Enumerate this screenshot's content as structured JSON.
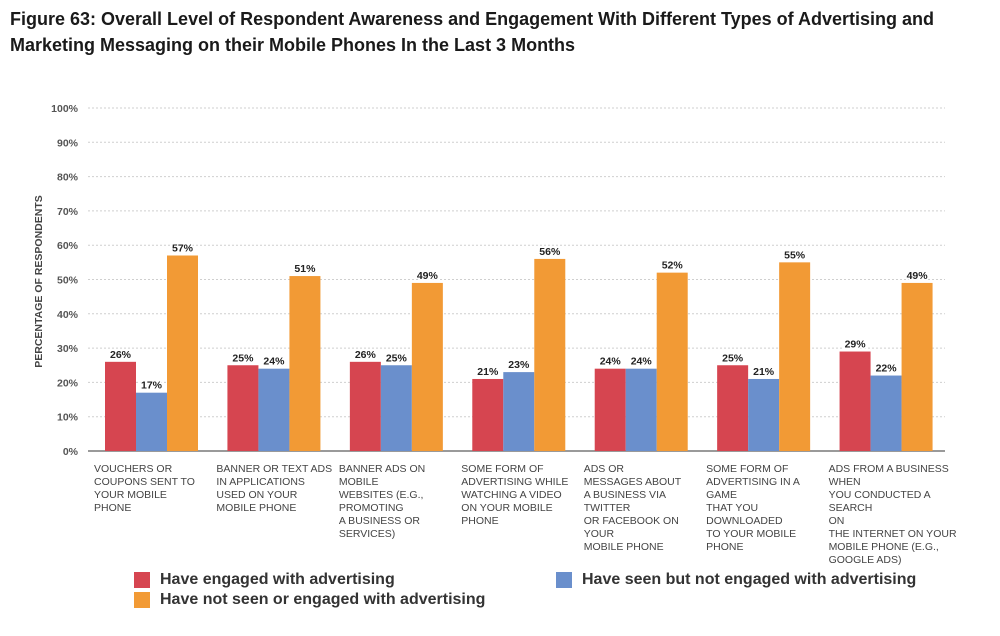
{
  "title_lines": [
    "Figure 63: Overall Level of Respondent Awareness and Engagement With Different Types of Advertising and",
    "Marketing Messaging on their Mobile Phones In the Last 3 Months"
  ],
  "chart_data": {
    "type": "bar",
    "ylabel": "PERCENTAGE OF RESPONDENTS",
    "ylim": [
      0,
      100
    ],
    "yticks": [
      "0%",
      "10%",
      "20%",
      "30%",
      "40%",
      "50%",
      "60%",
      "70%",
      "80%",
      "90%",
      "100%"
    ],
    "grid": true,
    "legend_position": "bottom",
    "categories": [
      "VOUCHERS OR\nCOUPONS SENT TO\nYOUR MOBILE\nPHONE",
      "BANNER OR TEXT ADS\nIN APPLICATIONS\nUSED ON YOUR\nMOBILE PHONE",
      "BANNER ADS ON\nMOBILE\nWEBSITES (E.G.,\nPROMOTING\nA BUSINESS OR\nSERVICES)",
      "SOME FORM OF\nADVERTISING WHILE\nWATCHING A VIDEO\nON YOUR MOBILE\nPHONE",
      "ADS OR\nMESSAGES ABOUT\nA BUSINESS VIA\nTWITTER\nOR FACEBOOK ON\nYOUR\nMOBILE PHONE",
      "SOME FORM OF\nADVERTISING IN A\nGAME\nTHAT YOU\nDOWNLOADED\nTO YOUR MOBILE\nPHONE",
      "ADS FROM A BUSINESS\nWHEN\nYOU CONDUCTED A SEARCH\nON\nTHE INTERNET ON YOUR\nMOBILE PHONE (E.G.,\nGOOGLE ADS)"
    ],
    "series": [
      {
        "name": "Have engaged with advertising",
        "color": "#d64550",
        "values": [
          26,
          25,
          26,
          21,
          24,
          25,
          29
        ]
      },
      {
        "name": "Have seen but not engaged with advertising",
        "color": "#6a8fcc",
        "values": [
          17,
          24,
          25,
          23,
          24,
          21,
          22
        ]
      },
      {
        "name": "Have not seen or engaged with advertising",
        "color": "#f29a35",
        "values": [
          57,
          51,
          49,
          56,
          52,
          55,
          49
        ]
      }
    ]
  }
}
